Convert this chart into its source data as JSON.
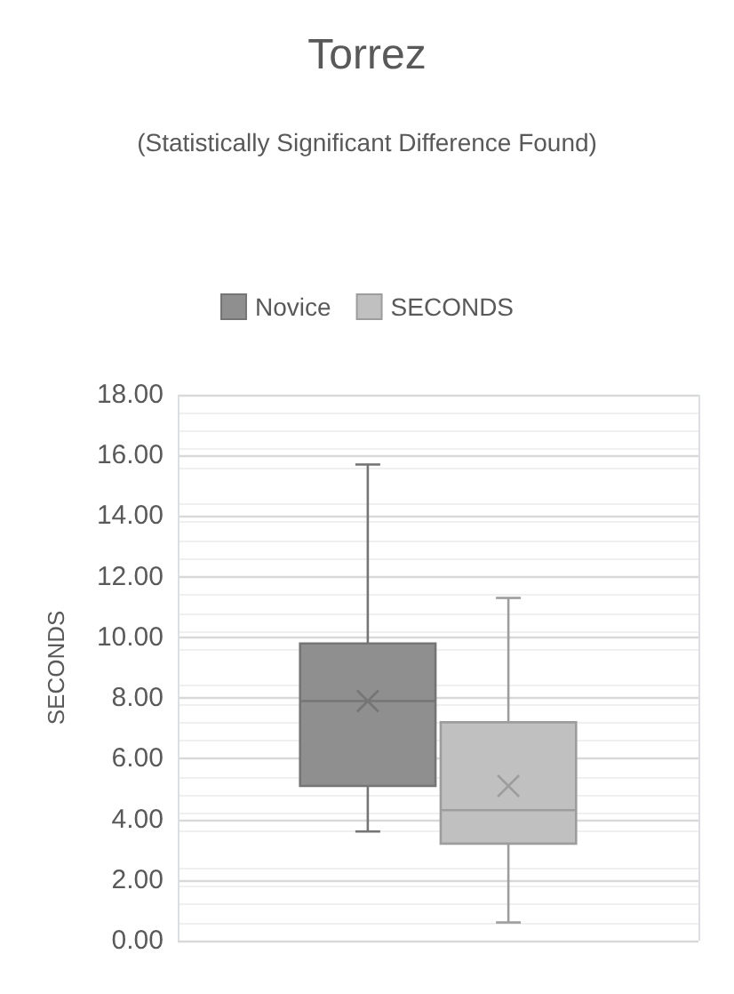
{
  "chart_data": {
    "type": "box",
    "title": "Torrez",
    "subtitle": "(Statistically Significant Difference Found)",
    "ylabel": "SECONDS",
    "categories": [
      null
    ],
    "series": [
      {
        "name": "Novice",
        "color": "#8f8f8f",
        "boxes": [
          {
            "low": 3.6,
            "q1": 5.1,
            "median": 7.9,
            "q3": 9.8,
            "high": 15.7,
            "mean": 7.9
          }
        ]
      },
      {
        "name": "SECONDS",
        "color": "#c0c0c0",
        "boxes": [
          {
            "low": 0.6,
            "q1": 3.2,
            "median": 4.3,
            "q3": 7.2,
            "high": 11.3,
            "mean": 5.1
          }
        ]
      }
    ],
    "ylim": [
      0,
      18
    ],
    "yticks": [
      {
        "value": 0,
        "label": "0.00"
      },
      {
        "value": 2,
        "label": "2.00"
      },
      {
        "value": 4,
        "label": "4.00"
      },
      {
        "value": 6,
        "label": "6.00"
      },
      {
        "value": 8,
        "label": "8.00"
      },
      {
        "value": 10,
        "label": "10.00"
      },
      {
        "value": 12,
        "label": "12.00"
      },
      {
        "value": 14,
        "label": "14.00"
      },
      {
        "value": 16,
        "label": "16.00"
      },
      {
        "value": 18,
        "label": "18.00"
      }
    ],
    "grid": true,
    "legend": "top"
  }
}
